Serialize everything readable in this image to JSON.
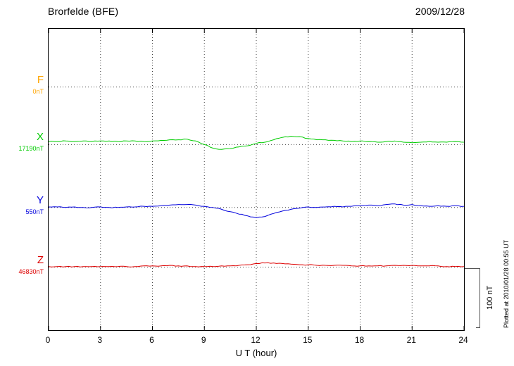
{
  "header": {
    "station": "Brorfelde (BFE)",
    "date": "2009/12/28"
  },
  "footer": {
    "plotted_at": "Plotted at 2010/01/28 00:55 UT"
  },
  "chart_data": {
    "type": "line",
    "title": "Brorfelde (BFE)",
    "date": "2009/12/28",
    "xlabel": "U T (hour)",
    "xlim": [
      0,
      24
    ],
    "x_ticks": [
      0,
      3,
      6,
      9,
      12,
      15,
      18,
      21,
      24
    ],
    "x_step_hours": 0.5,
    "grid": "dotted vertical lines every 3 hours; dotted horizontal baseline per component",
    "legend_position": "left-outside",
    "scale_bar_label": "100 nT",
    "scale_bar_nT": 100,
    "series": [
      {
        "name": "F",
        "baseline_label": "0nT",
        "baseline_nT": 0,
        "color": "#FFA500",
        "baseline_frac": 0.193,
        "offsets_nT": []
      },
      {
        "name": "X",
        "baseline_label": "17190nT",
        "baseline_nT": 17190,
        "color": "#00CC00",
        "baseline_frac": 0.384,
        "offsets_nT": [
          5,
          5,
          6,
          5,
          6,
          5,
          6,
          6,
          5,
          6,
          6,
          5,
          6,
          7,
          8,
          8,
          9,
          6,
          0,
          -6,
          -8,
          -7,
          -4,
          -2,
          2,
          4,
          8,
          12,
          14,
          13,
          10,
          8,
          8,
          7,
          6,
          5,
          6,
          5,
          4,
          5,
          6,
          4,
          3,
          4,
          5,
          4,
          4,
          5,
          4
        ]
      },
      {
        "name": "Y",
        "baseline_label": "550nT",
        "baseline_nT": 550,
        "color": "#0000DD",
        "baseline_frac": 0.593,
        "offsets_nT": [
          1,
          1,
          0,
          1,
          0,
          0,
          1,
          0,
          0,
          1,
          1,
          2,
          2,
          3,
          4,
          5,
          5,
          4,
          2,
          0,
          -3,
          -7,
          -11,
          -14,
          -17,
          -15,
          -10,
          -6,
          -3,
          -1,
          1,
          0,
          1,
          2,
          1,
          2,
          3,
          4,
          3,
          5,
          6,
          4,
          5,
          3,
          2,
          3,
          2,
          3,
          2
        ]
      },
      {
        "name": "Z",
        "baseline_label": "46830nT",
        "baseline_nT": 46830,
        "color": "#DD0000",
        "baseline_frac": 0.791,
        "offsets_nT": [
          1,
          1,
          1,
          1,
          1,
          1,
          1,
          1,
          1,
          1,
          1,
          2,
          2,
          2,
          3,
          2,
          2,
          1,
          1,
          1,
          2,
          2,
          3,
          4,
          6,
          7,
          7,
          6,
          5,
          4,
          4,
          3,
          3,
          3,
          3,
          2,
          2,
          2,
          2,
          2,
          3,
          3,
          3,
          2,
          2,
          2,
          1,
          1,
          1
        ]
      }
    ]
  }
}
